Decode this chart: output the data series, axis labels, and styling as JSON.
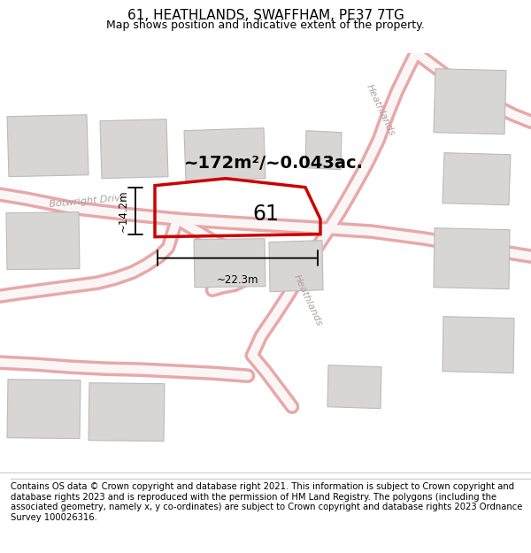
{
  "title": "61, HEATHLANDS, SWAFFHAM, PE37 7TG",
  "subtitle": "Map shows position and indicative extent of the property.",
  "footer": "Contains OS data © Crown copyright and database right 2021. This information is subject to Crown copyright and database rights 2023 and is reproduced with the permission of HM Land Registry. The polygons (including the associated geometry, namely x, y co-ordinates) are subject to Crown copyright and database rights 2023 Ordnance Survey 100026316.",
  "bg_color": "#ffffff",
  "map_bg": "#f7f2f2",
  "road_outer": "#e8a8a8",
  "road_inner": "#faf6f6",
  "building_fill": "#d8d5d5",
  "building_edge": "#bbbbbb",
  "plot_color": "#cc0000",
  "area_text": "~172m²/~0.043ac.",
  "label_61": "61",
  "dim_width": "~22.3m",
  "dim_height": "~14.2m",
  "street1": "Botwright Drive",
  "street2": "Heathlands",
  "title_fontsize": 11,
  "subtitle_fontsize": 9,
  "footer_fontsize": 7.2,
  "road_lw_outer": 10,
  "road_lw_inner": 6
}
